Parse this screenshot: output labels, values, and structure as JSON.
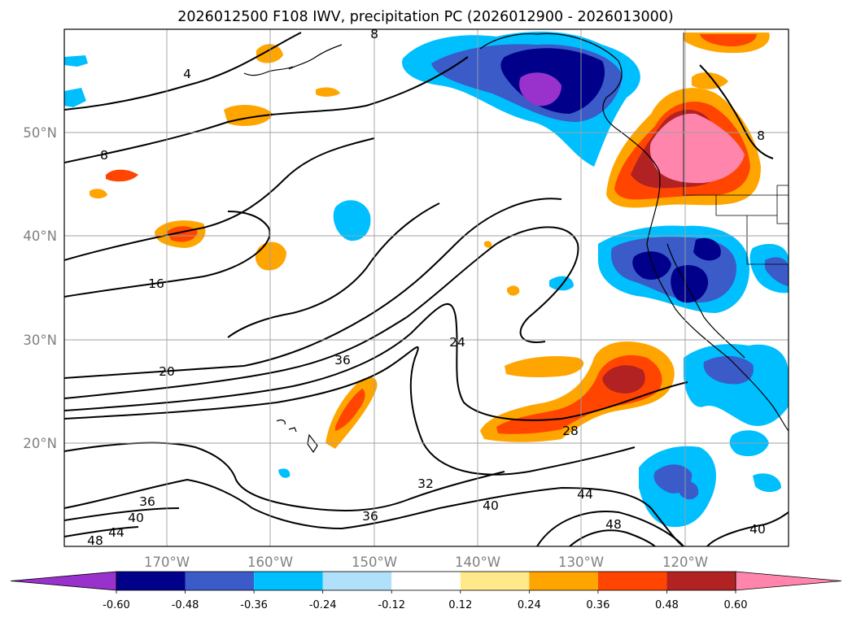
{
  "title": "2026012500 F108 IWV, precipitation PC (2026012900 - 2026013000)",
  "map": {
    "lon_labels": [
      "170°W",
      "160°W",
      "150°W",
      "140°W",
      "130°W",
      "120°W"
    ],
    "lat_labels": [
      "50°N",
      "40°N",
      "30°N",
      "20°N"
    ],
    "gridlines": true,
    "contour_labels": [
      "4",
      "8",
      "8",
      "8",
      "16",
      "20",
      "24",
      "28",
      "32",
      "36",
      "36",
      "36",
      "40",
      "40",
      "40",
      "44",
      "44",
      "48",
      "48"
    ]
  },
  "colorbar": {
    "extend": "both",
    "colors": [
      "#9932cc",
      "#00008b",
      "#3a5bc8",
      "#00bfff",
      "#b0e0fa",
      "#ffffff",
      "#ffe98a",
      "#ffa500",
      "#ff4500",
      "#b22222",
      "#ff85ad"
    ],
    "labels": [
      "-0.60",
      "-0.48",
      "-0.36",
      "-0.24",
      "-0.12",
      "0.12",
      "0.24",
      "0.36",
      "0.48",
      "0.60"
    ]
  }
}
